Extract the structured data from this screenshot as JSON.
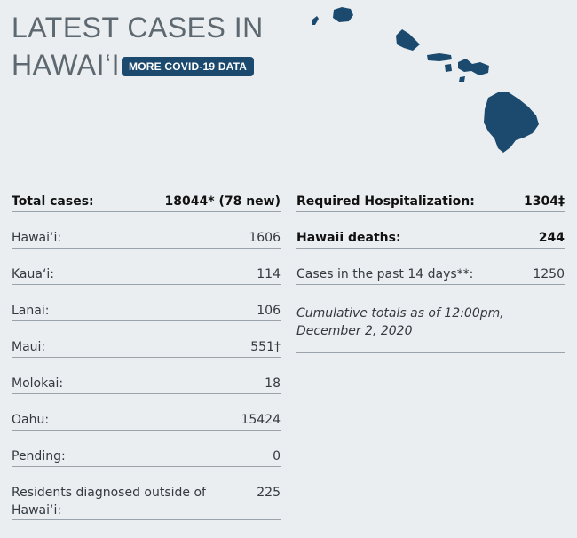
{
  "header": {
    "title_line1": "LATEST CASES IN",
    "title_line2": "HAWAI‘I",
    "more_button": "MORE COVID-19 DATA"
  },
  "left": [
    {
      "label": "Total cases:",
      "value": "18044* (78 new)",
      "bold": true
    },
    {
      "label": "Hawai‘i:",
      "value": "1606"
    },
    {
      "label": "Kaua‘i:",
      "value": "114"
    },
    {
      "label": "Lanai:",
      "value": "106"
    },
    {
      "label": "Maui:",
      "value": "551†"
    },
    {
      "label": "Molokai:",
      "value": "18"
    },
    {
      "label": "Oahu:",
      "value": "15424"
    },
    {
      "label": "Pending:",
      "value": "0"
    },
    {
      "label": "Residents diagnosed outside of Hawai‘i:",
      "value": "225"
    }
  ],
  "right": [
    {
      "label": "Required Hospitalization:",
      "value": "1304‡",
      "bold": true
    },
    {
      "label": "Hawaii deaths:",
      "value": "244",
      "bold": true
    },
    {
      "label": "Cases in the past 14 days**:",
      "value": "1250"
    }
  ],
  "note": "Cumulative totals as of 12:00pm, December 2, 2020",
  "colors": {
    "island": "#1c4a6e",
    "button": "#1c4a6e",
    "background": "#eaeef1"
  }
}
